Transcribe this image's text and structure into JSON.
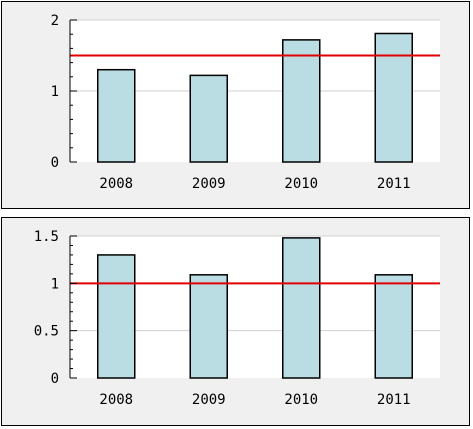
{
  "chart_data": [
    {
      "type": "bar",
      "categories": [
        "2008",
        "2009",
        "2010",
        "2011"
      ],
      "values": [
        1.3,
        1.22,
        1.72,
        1.81
      ],
      "ylim": [
        0,
        2
      ],
      "yticks": [
        "0",
        "1",
        "2"
      ],
      "reference_line": 1.5,
      "title": "",
      "xlabel": "",
      "ylabel": "",
      "bar_color": "#b9dde3",
      "line_color": "#e00000",
      "grid": true
    },
    {
      "type": "bar",
      "categories": [
        "2008",
        "2009",
        "2010",
        "2011"
      ],
      "values": [
        1.3,
        1.09,
        1.48,
        1.09
      ],
      "ylim": [
        0,
        1.5
      ],
      "yticks": [
        "0",
        "0.5",
        "1",
        "1.5"
      ],
      "reference_line": 1.0,
      "title": "",
      "xlabel": "",
      "ylabel": "",
      "bar_color": "#b9dde3",
      "line_color": "#e00000",
      "grid": true
    }
  ]
}
